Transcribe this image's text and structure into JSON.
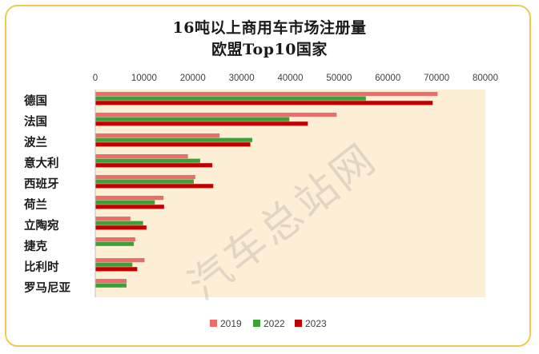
{
  "chart_data": {
    "type": "bar",
    "orientation": "horizontal",
    "title": "16吨以上商用车市场注册量",
    "subtitle": "欧盟Top10国家",
    "categories": [
      "德国",
      "法国",
      "波兰",
      "意大利",
      "西班牙",
      "荷兰",
      "立陶宛",
      "捷克",
      "比利时",
      "罗马尼亚"
    ],
    "series": [
      {
        "name": "2019",
        "color": "#ec6b6b",
        "values": [
          70200,
          49500,
          25500,
          19000,
          20500,
          14000,
          7200,
          8200,
          10100,
          6400
        ]
      },
      {
        "name": "2022",
        "color": "#3aa335",
        "values": [
          55500,
          39800,
          32200,
          21500,
          20200,
          12200,
          9800,
          7900,
          7600,
          6400
        ]
      },
      {
        "name": "2023",
        "color": "#c00000",
        "values": [
          69200,
          43600,
          31800,
          24000,
          24200,
          14100,
          10500,
          0,
          8600,
          0
        ]
      }
    ],
    "xlim": [
      0,
      80000
    ],
    "xticks": [
      "0",
      "10000",
      "20000",
      "30000",
      "40000",
      "50000",
      "60000",
      "70000",
      "80000"
    ],
    "legend_position": "bottom",
    "plot_background": "#fcefd5",
    "grid": false
  },
  "watermark": "汽车总站网"
}
